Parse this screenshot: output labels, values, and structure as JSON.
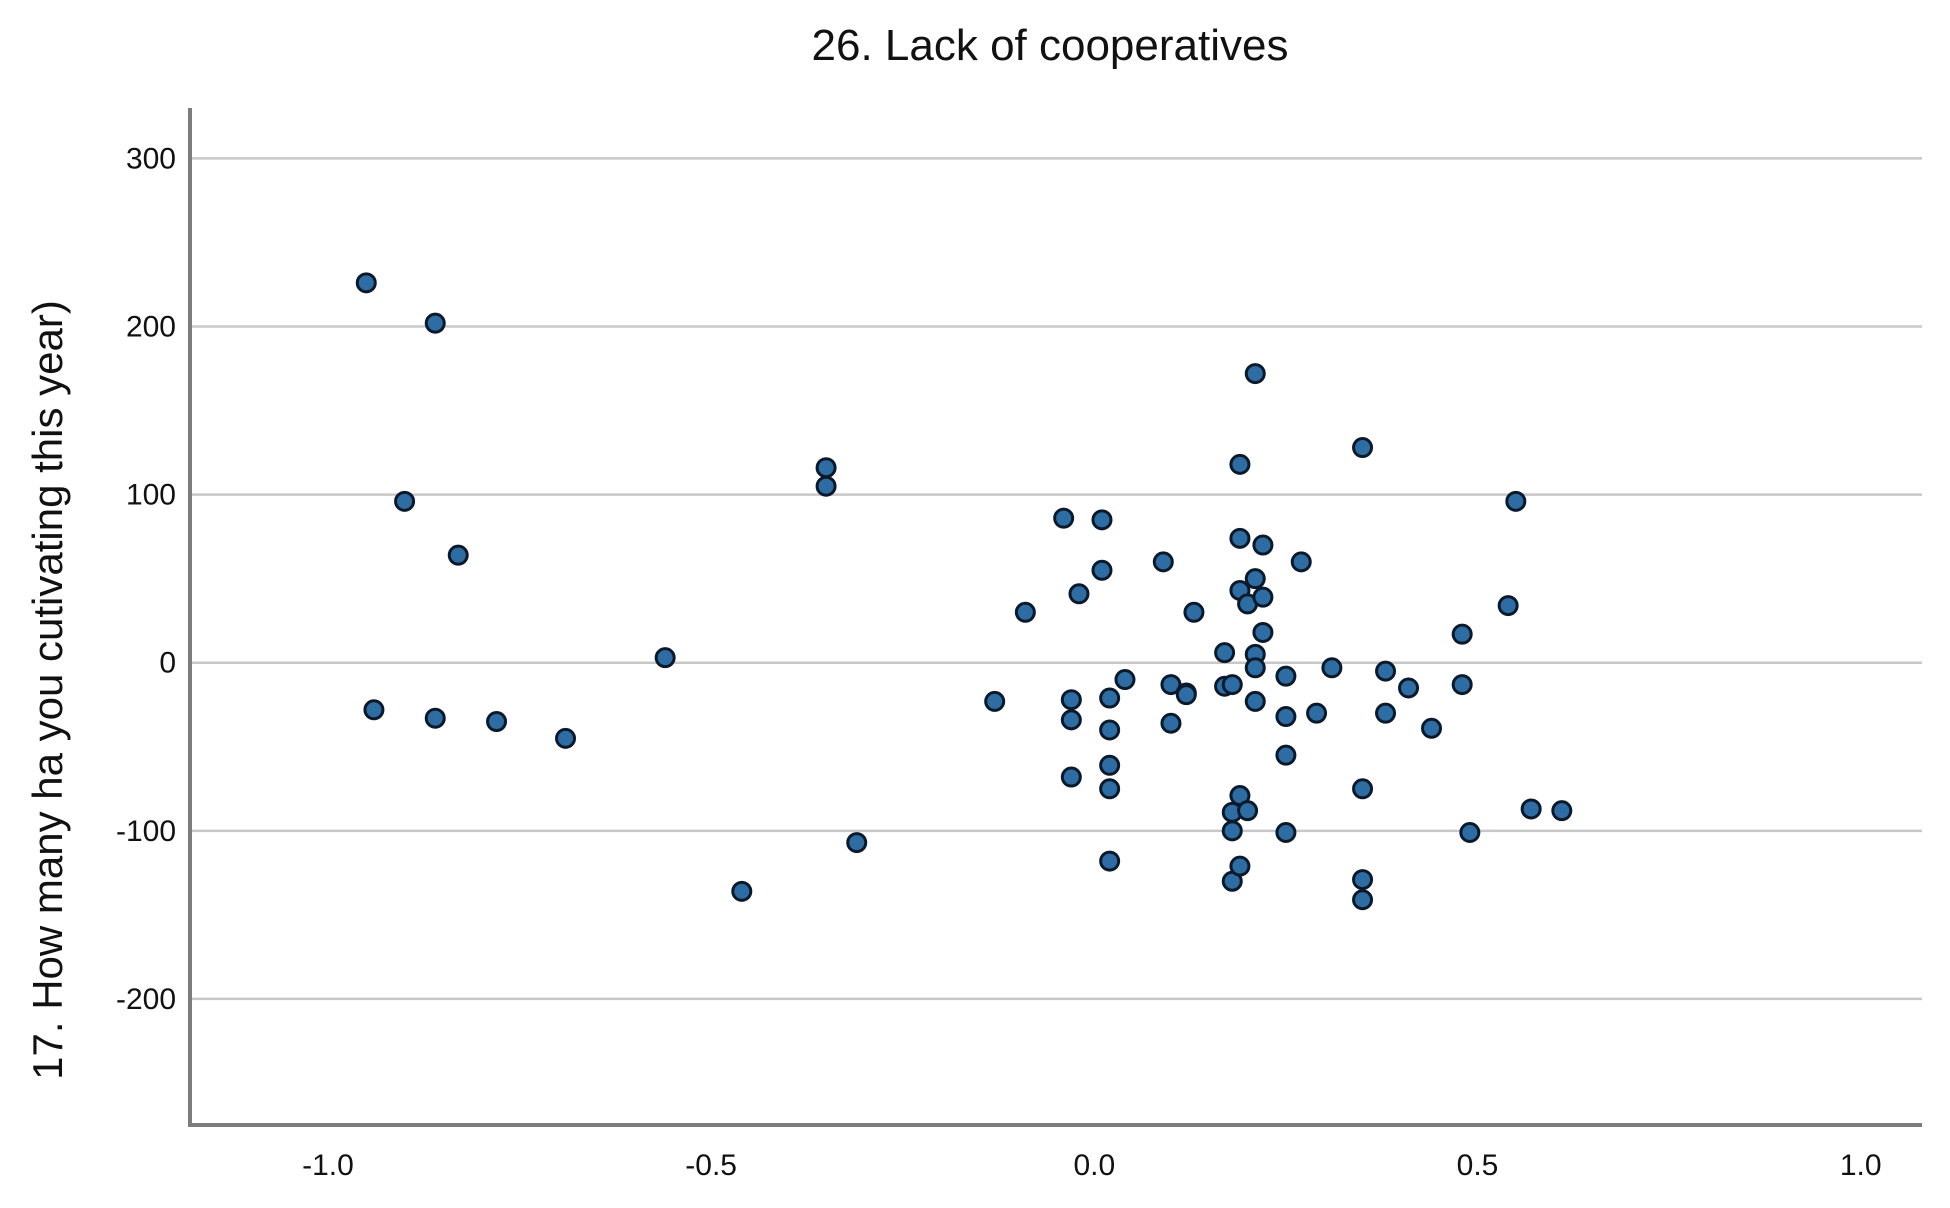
{
  "chart_data": {
    "type": "scatter",
    "title": "26. Lack of cooperatives",
    "xlabel": "",
    "ylabel": "17. How many ha you  cutivating this year)",
    "xlim": [
      -1.18,
      1.08
    ],
    "ylim": [
      -275,
      330
    ],
    "x_ticks": [
      -1.0,
      -0.5,
      0.0,
      0.5,
      1.0
    ],
    "x_tick_labels": [
      "-1.0",
      "-0.5",
      "0.0",
      "0.5",
      "1.0"
    ],
    "y_ticks": [
      300,
      200,
      100,
      0,
      -100,
      -200
    ],
    "y_tick_labels": [
      "300",
      "200",
      "100",
      "0",
      "-100",
      "-200"
    ],
    "grid": "horizontal",
    "marker_color": "#2e6da4",
    "points": [
      {
        "x": -0.95,
        "y": 226
      },
      {
        "x": -0.86,
        "y": 202
      },
      {
        "x": -0.9,
        "y": 96
      },
      {
        "x": -0.83,
        "y": 64
      },
      {
        "x": -0.94,
        "y": -28
      },
      {
        "x": -0.86,
        "y": -33
      },
      {
        "x": -0.78,
        "y": -35
      },
      {
        "x": -0.69,
        "y": -45
      },
      {
        "x": -0.56,
        "y": 3
      },
      {
        "x": -0.46,
        "y": -136
      },
      {
        "x": -0.35,
        "y": 116
      },
      {
        "x": -0.35,
        "y": 105
      },
      {
        "x": -0.31,
        "y": -107
      },
      {
        "x": -0.13,
        "y": -23
      },
      {
        "x": -0.09,
        "y": 30
      },
      {
        "x": -0.04,
        "y": 86
      },
      {
        "x": -0.03,
        "y": -22
      },
      {
        "x": -0.03,
        "y": -34
      },
      {
        "x": -0.03,
        "y": -68
      },
      {
        "x": -0.02,
        "y": 41
      },
      {
        "x": 0.01,
        "y": 85
      },
      {
        "x": 0.01,
        "y": 55
      },
      {
        "x": 0.02,
        "y": -21
      },
      {
        "x": 0.02,
        "y": -40
      },
      {
        "x": 0.02,
        "y": -61
      },
      {
        "x": 0.02,
        "y": -75
      },
      {
        "x": 0.02,
        "y": -118
      },
      {
        "x": 0.04,
        "y": -10
      },
      {
        "x": 0.09,
        "y": 60
      },
      {
        "x": 0.1,
        "y": -13
      },
      {
        "x": 0.1,
        "y": -36
      },
      {
        "x": 0.12,
        "y": -18
      },
      {
        "x": 0.12,
        "y": -19
      },
      {
        "x": 0.13,
        "y": 30
      },
      {
        "x": 0.17,
        "y": 6
      },
      {
        "x": 0.17,
        "y": -14
      },
      {
        "x": 0.18,
        "y": -13
      },
      {
        "x": 0.18,
        "y": -89
      },
      {
        "x": 0.18,
        "y": -100
      },
      {
        "x": 0.18,
        "y": -130
      },
      {
        "x": 0.19,
        "y": 118
      },
      {
        "x": 0.19,
        "y": 74
      },
      {
        "x": 0.19,
        "y": 43
      },
      {
        "x": 0.19,
        "y": -79
      },
      {
        "x": 0.19,
        "y": -121
      },
      {
        "x": 0.2,
        "y": 35
      },
      {
        "x": 0.2,
        "y": -88
      },
      {
        "x": 0.21,
        "y": 172
      },
      {
        "x": 0.21,
        "y": 50
      },
      {
        "x": 0.21,
        "y": 5
      },
      {
        "x": 0.21,
        "y": -3
      },
      {
        "x": 0.21,
        "y": -23
      },
      {
        "x": 0.22,
        "y": 70
      },
      {
        "x": 0.22,
        "y": 39
      },
      {
        "x": 0.22,
        "y": 18
      },
      {
        "x": 0.25,
        "y": -8
      },
      {
        "x": 0.25,
        "y": -32
      },
      {
        "x": 0.25,
        "y": -55
      },
      {
        "x": 0.25,
        "y": -101
      },
      {
        "x": 0.27,
        "y": 60
      },
      {
        "x": 0.29,
        "y": -30
      },
      {
        "x": 0.31,
        "y": -3
      },
      {
        "x": 0.35,
        "y": 128
      },
      {
        "x": 0.35,
        "y": -75
      },
      {
        "x": 0.35,
        "y": -129
      },
      {
        "x": 0.35,
        "y": -141
      },
      {
        "x": 0.38,
        "y": -5
      },
      {
        "x": 0.38,
        "y": -30
      },
      {
        "x": 0.41,
        "y": -15
      },
      {
        "x": 0.44,
        "y": -39
      },
      {
        "x": 0.48,
        "y": 17
      },
      {
        "x": 0.48,
        "y": -13
      },
      {
        "x": 0.49,
        "y": -101
      },
      {
        "x": 0.54,
        "y": 34
      },
      {
        "x": 0.55,
        "y": 96
      },
      {
        "x": 0.57,
        "y": -87
      },
      {
        "x": 0.61,
        "y": -88
      }
    ]
  }
}
